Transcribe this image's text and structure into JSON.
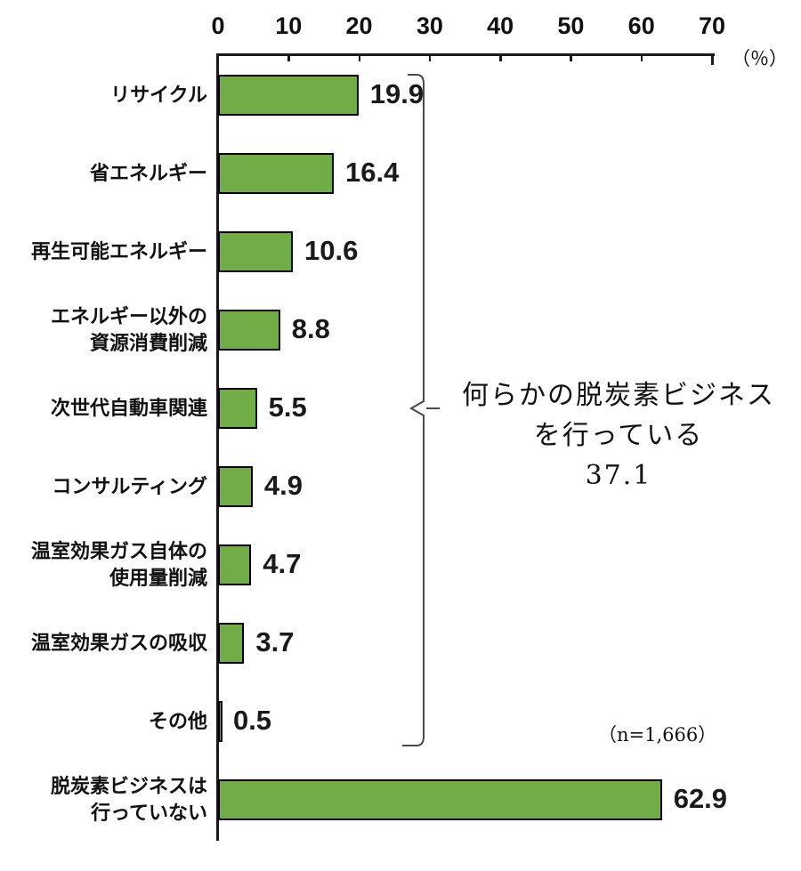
{
  "chart_data": {
    "type": "bar",
    "orientation": "horizontal",
    "title": "",
    "xlabel": "（％）",
    "ylabel": "",
    "xlim": [
      0,
      70
    ],
    "x_ticks": [
      0,
      10,
      20,
      30,
      40,
      50,
      60,
      70
    ],
    "grid": false,
    "legend": false,
    "categories": [
      [
        "リサイクル"
      ],
      [
        "省エネルギー"
      ],
      [
        "再生可能エネルギー"
      ],
      [
        "エネルギー以外の",
        "資源消費削減"
      ],
      [
        "次世代自動車関連"
      ],
      [
        "コンサルティング"
      ],
      [
        "温室効果ガス自体の",
        "使用量削減"
      ],
      [
        "温室効果ガスの吸収"
      ],
      [
        "その他"
      ],
      [
        "脱炭素ビジネスは",
        "行っていない"
      ]
    ],
    "values": [
      19.9,
      16.4,
      10.6,
      8.8,
      5.5,
      4.9,
      4.7,
      3.7,
      0.5,
      62.9
    ],
    "bar_color": "#70AD47",
    "bar_border_color": "#000000",
    "annotation": {
      "line1": "何らかの脱炭素ビジネス",
      "line2": "を行っている",
      "value": "37.1",
      "bracket_group": {
        "from": "リサイクル",
        "to": "その他"
      }
    },
    "sample_size": "（n=1,666）"
  }
}
